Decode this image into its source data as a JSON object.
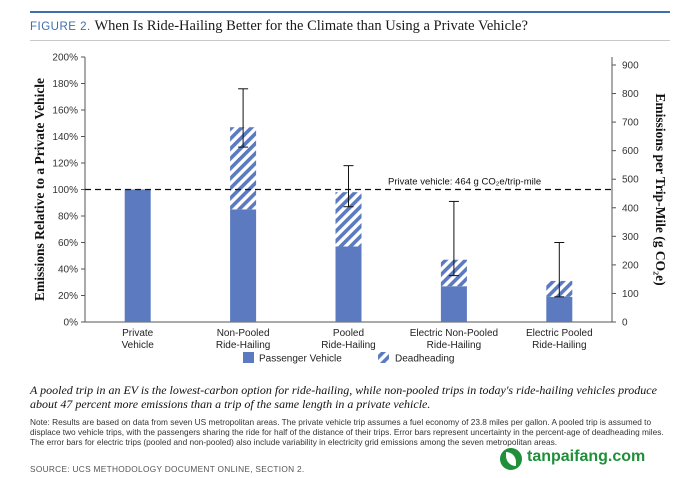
{
  "figure": {
    "label": "FIGURE 2.",
    "title": "When Is Ride-Hailing Better for the Climate than Using a Private Vehicle?"
  },
  "colors": {
    "passenger": "#5b7abf",
    "hatch": "#5b7abf",
    "accent": "#3c6fb0",
    "watermark": "#1f8f3a"
  },
  "chart_data": {
    "type": "bar",
    "stacked": true,
    "categories": [
      [
        "Private",
        "Vehicle"
      ],
      [
        "Non-Pooled",
        "Ride-Hailing"
      ],
      [
        "Pooled",
        "Ride-Hailing"
      ],
      [
        "Electric Non-Pooled",
        "Ride-Hailing"
      ],
      [
        "Electric Pooled",
        "Ride-Hailing"
      ]
    ],
    "series": [
      {
        "name": "Passenger Vehicle",
        "pattern": "solid",
        "values": [
          100,
          85,
          57,
          27,
          19
        ]
      },
      {
        "name": "Deadheading",
        "pattern": "hatched",
        "values": [
          0,
          62,
          41,
          20,
          12
        ]
      }
    ],
    "error_bars": [
      null,
      [
        132,
        176
      ],
      [
        87,
        118
      ],
      [
        35,
        91
      ],
      [
        19,
        60
      ]
    ],
    "ylabel_left": "Emissions Relative to a Private Vehicle",
    "ylabel_right": "Emissions per Trip-Mile (g CO₂e)",
    "ylim_left": [
      0,
      200
    ],
    "yticks_left": [
      0,
      20,
      40,
      60,
      80,
      100,
      120,
      140,
      160,
      180,
      200
    ],
    "ytick_format_left": "%",
    "ylim_right": [
      0,
      928
    ],
    "yticks_right": [
      0,
      100,
      200,
      300,
      400,
      500,
      600,
      700,
      800,
      900
    ],
    "reference_line": {
      "value": 100,
      "style": "dashed",
      "label": "Private vehicle: 464 g CO₂e/trip-mile"
    },
    "legend_position": "bottom",
    "grid": false
  },
  "caption": "A pooled trip in an EV is the lowest-carbon option for ride-hailing, while non-pooled trips in today's ride-hailing vehicles produce about 47 percent more emissions than a trip of the same length in a private vehicle.",
  "note": "Note: Results are based on data from seven US metropolitan areas. The private vehicle trip assumes a fuel economy of 23.8 miles per gallon. A pooled trip is assumed to displace two vehicle trips, with the passengers sharing the ride for half of the distance of their trips. Error bars represent uncertainty in the percent-age of deadheading miles. The error bars for electric trips (pooled and non-pooled) also include variability in electricity grid emissions among the seven metropolitan areas.",
  "source": "SOURCE: UCS METHODOLOGY DOCUMENT ONLINE, SECTION 2.",
  "watermark": {
    "text": "tanpaifang.com"
  }
}
